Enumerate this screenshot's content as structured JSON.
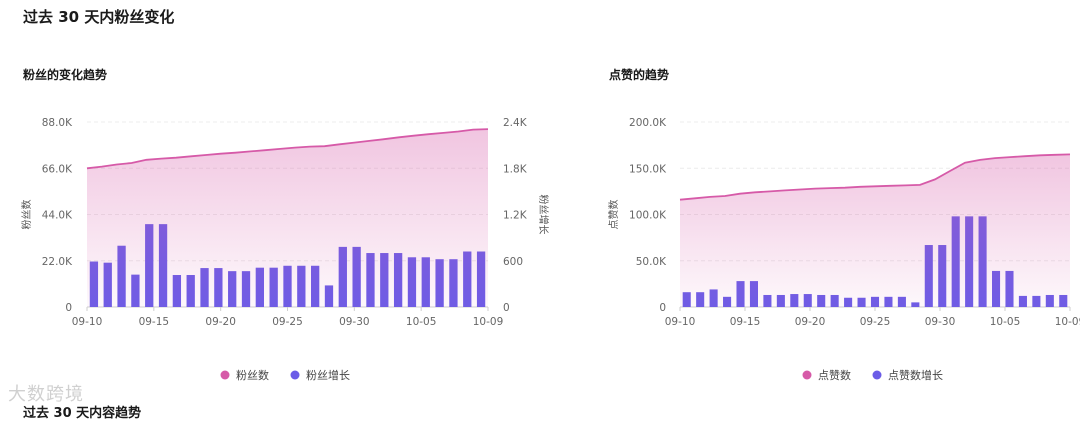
{
  "page": {
    "section_title": "过去 30 天内粉丝变化",
    "watermark": "大数跨境",
    "next_section_title": "过去 30 天内容趋势"
  },
  "chart_data": [
    {
      "type": "bar+area",
      "title": "粉丝的变化趋势",
      "ylabel_left": "粉丝数",
      "ylabel_right": "粉丝增长",
      "x_ticks": [
        "09-10",
        "09-15",
        "09-20",
        "09-25",
        "09-30",
        "10-05",
        "10-09"
      ],
      "y_left_ticks": [
        "0",
        "22.0K",
        "44.0K",
        "66.0K",
        "88.0K"
      ],
      "y_left_max": 88000,
      "y_right_ticks": [
        "0",
        "600",
        "1.2K",
        "1.8K",
        "2.4K"
      ],
      "y_right_max": 2400,
      "area_series": {
        "name": "粉丝数",
        "color": "#d65aa8",
        "values": [
          66000,
          66800,
          67800,
          68500,
          70000,
          70600,
          71000,
          71700,
          72300,
          72900,
          73400,
          74000,
          74600,
          75200,
          75800,
          76300,
          76500,
          77400,
          78200,
          79000,
          79800,
          80700,
          81500,
          82200,
          82800,
          83500,
          84400,
          84600
        ]
      },
      "bar_series": {
        "name": "粉丝增长",
        "color": "#6b5ce7",
        "values": [
          590,
          575,
          795,
          420,
          1075,
          1075,
          415,
          415,
          505,
          505,
          465,
          465,
          510,
          510,
          535,
          535,
          535,
          280,
          780,
          780,
          700,
          700,
          700,
          645,
          645,
          620,
          620,
          720,
          720
        ]
      },
      "legend": [
        {
          "label": "粉丝数",
          "color": "#d65aa8"
        },
        {
          "label": "粉丝增长",
          "color": "#6b5ce7"
        }
      ]
    },
    {
      "type": "bar+area",
      "title": "点赞的趋势",
      "ylabel_left": "点赞数",
      "x_ticks": [
        "09-10",
        "09-15",
        "09-20",
        "09-25",
        "09-30",
        "10-05",
        "10-09"
      ],
      "y_left_ticks": [
        "0",
        "50.0K",
        "100.0K",
        "150.0K",
        "200.0K"
      ],
      "y_left_max": 200000,
      "area_series": {
        "name": "点赞数",
        "color": "#d65aa8",
        "values": [
          116000,
          117500,
          119000,
          120000,
          122500,
          124000,
          125000,
          126000,
          127000,
          128000,
          128500,
          129000,
          130000,
          130500,
          131000,
          131500,
          132000,
          138000,
          147000,
          156000,
          159000,
          161000,
          162000,
          163000,
          164000,
          164500,
          165000
        ]
      },
      "bar_series": {
        "name": "点赞数增长",
        "color": "#6b5ce7",
        "values": [
          16000,
          16000,
          19000,
          11000,
          28000,
          28000,
          13000,
          13000,
          14000,
          14000,
          13000,
          13000,
          10000,
          10000,
          11000,
          11000,
          11000,
          5000,
          67000,
          67000,
          98000,
          98000,
          98000,
          39000,
          39000,
          12000,
          12000,
          13000,
          13000
        ]
      },
      "legend": [
        {
          "label": "点赞数",
          "color": "#d65aa8"
        },
        {
          "label": "点赞数增长",
          "color": "#6b5ce7"
        }
      ]
    }
  ]
}
